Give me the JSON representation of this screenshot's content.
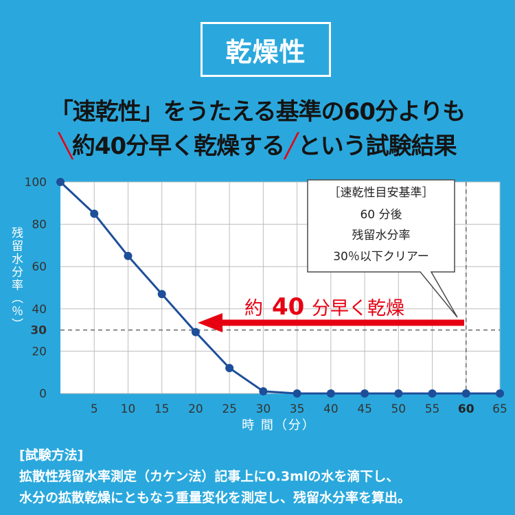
{
  "header": {
    "badge": "乾燥性",
    "headline_line1": "「速乾性」をうたえる基準の60分よりも",
    "headline_line2": "約40分早く乾燥する",
    "headline_line2_suffix": "という試験結果"
  },
  "callout": {
    "line1": "［速乾性目安基準］",
    "line2": "60 分後",
    "line3": "残留水分率",
    "line4": "30％以下クリアー"
  },
  "arrow_label": {
    "prefix": "約",
    "number": "40",
    "suffix": "分早く乾燥"
  },
  "chart_data": {
    "type": "line",
    "xlabel": "時 間（分）",
    "ylabel": "残留水分率（％）",
    "xlim": [
      0,
      65
    ],
    "ylim": [
      0,
      100
    ],
    "xticks": [
      5,
      10,
      15,
      20,
      25,
      30,
      35,
      40,
      45,
      50,
      55,
      60,
      65
    ],
    "yticks": [
      0,
      20,
      30,
      40,
      60,
      80,
      100
    ],
    "x": [
      0,
      5,
      10,
      15,
      20,
      25,
      30,
      35,
      40,
      45,
      50,
      55,
      60,
      65
    ],
    "y": [
      100,
      85,
      65,
      47,
      29,
      12,
      1,
      0,
      0,
      0,
      0,
      0,
      0,
      0
    ],
    "reference_lines": {
      "x": 60,
      "y": 30
    },
    "grid": true,
    "colors": {
      "line": "#1d4e9a",
      "marker": "#1d4e9a",
      "arrow": "#e60012",
      "grid": "#bdbdbd"
    }
  },
  "method": {
    "heading": "[試験方法]",
    "line1": "拡散性残留水率測定（カケン法）記事上に0.3mlの水を滴下し、",
    "line2": "水分の拡散乾燥にともなう重量変化を測定し、残留水分率を算出。"
  }
}
